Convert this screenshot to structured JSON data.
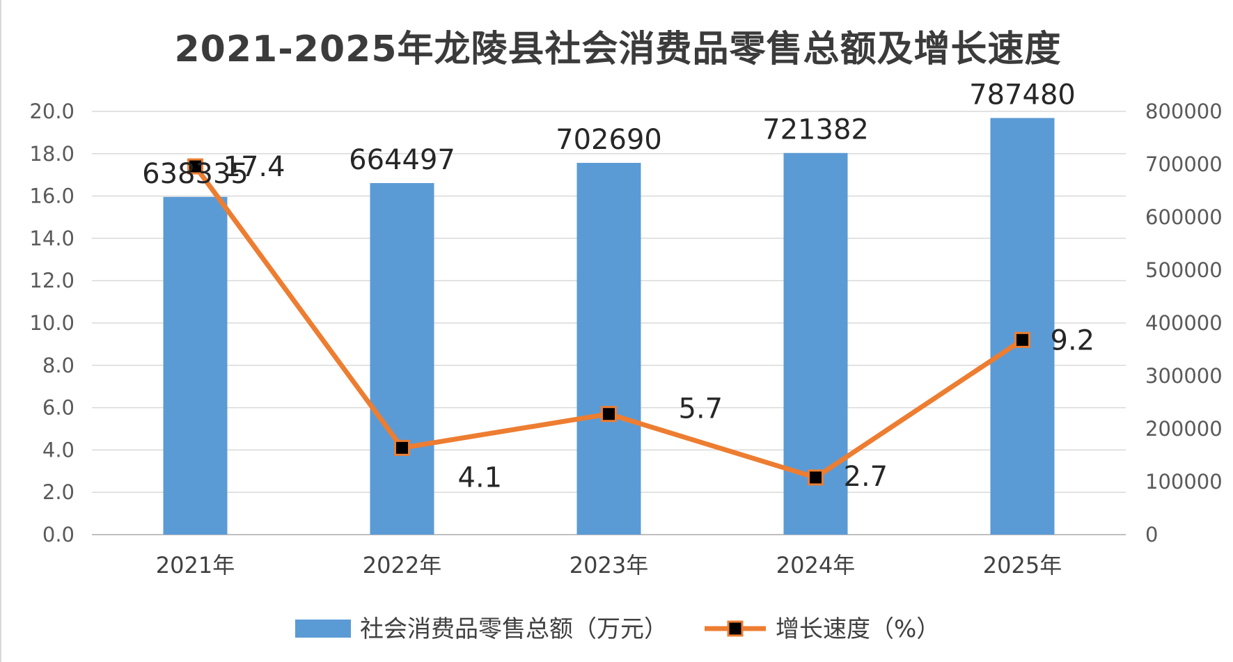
{
  "chart_data": {
    "type": "bar+line",
    "title": "2021-2025年龙陵县社会消费品零售总额及增长速度",
    "categories": [
      "2021年",
      "2022年",
      "2023年",
      "2024年",
      "2025年"
    ],
    "series": [
      {
        "name": "社会消费品零售总额（万元）",
        "type": "bar",
        "axis": "right",
        "values": [
          638335,
          664497,
          702690,
          721382,
          787480
        ],
        "labels": [
          "638335",
          "664497",
          "702690",
          "721382",
          "787480"
        ],
        "color": "#5b9bd5"
      },
      {
        "name": "增长速度（%）",
        "type": "line",
        "axis": "left",
        "values": [
          17.4,
          4.1,
          5.7,
          2.7,
          9.2
        ],
        "labels": [
          "17.4",
          "4.1",
          "5.7",
          "2.7",
          "9.2"
        ],
        "color": "#ed7d31",
        "marker": "square",
        "marker_color": "#000000"
      }
    ],
    "y_left": {
      "ylim": [
        0,
        20
      ],
      "ticks": [
        "0.0",
        "2.0",
        "4.0",
        "6.0",
        "8.0",
        "10.0",
        "12.0",
        "14.0",
        "16.0",
        "18.0",
        "20.0"
      ]
    },
    "y_right": {
      "ylim": [
        0,
        800000
      ],
      "ticks": [
        "0",
        "100000",
        "200000",
        "300000",
        "400000",
        "500000",
        "600000",
        "700000",
        "800000"
      ]
    },
    "grid": true,
    "legend": "bottom"
  }
}
